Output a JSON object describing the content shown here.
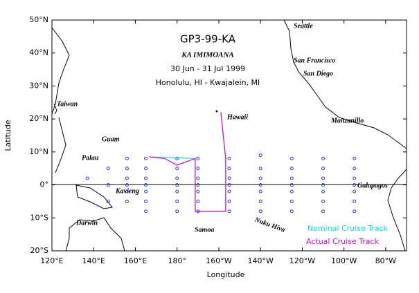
{
  "map": {
    "title": "GP3-99-KA",
    "subtitle": "KA IMIMOANA",
    "dates": "30 Jun - 31 Jul 1999",
    "route": "Honolulu, HI - Kwajalein, MI",
    "x_label": "Longitude",
    "y_label": "Latitude",
    "xlim": [
      120,
      290
    ],
    "ylim": [
      -20,
      50
    ],
    "xticks": [
      {
        "value": 120,
        "label": "120°E"
      },
      {
        "value": 140,
        "label": "140°E"
      },
      {
        "value": 160,
        "label": "160°E"
      },
      {
        "value": 180,
        "label": "180°"
      },
      {
        "value": 200,
        "label": "160°W"
      },
      {
        "value": 220,
        "label": "140°W"
      },
      {
        "value": 240,
        "label": "120°W"
      },
      {
        "value": 260,
        "label": "100°W"
      },
      {
        "value": 280,
        "label": "80°W"
      }
    ],
    "yticks": [
      {
        "value": 50,
        "label": "50°N"
      },
      {
        "value": 40,
        "label": "40°N"
      },
      {
        "value": 30,
        "label": "30°N"
      },
      {
        "value": 20,
        "label": "20°N"
      },
      {
        "value": 10,
        "label": "10°N"
      },
      {
        "value": 0,
        "label": "0°"
      },
      {
        "value": -10,
        "label": "10°S"
      },
      {
        "value": -20,
        "label": "20°S"
      }
    ],
    "places": [
      "Seattle",
      "San Francisco",
      "San Diego",
      "Manzanillo",
      "Hawaii",
      "Taiwan",
      "Guam",
      "Palau",
      "Kavieng",
      "Darwin",
      "Samoa",
      "Nuku Hiva",
      "Galapagos"
    ],
    "buoys": [
      {
        "lon": 137,
        "lats": [
          2
        ]
      },
      {
        "lon": 147,
        "lats": [
          5,
          0,
          -5
        ]
      },
      {
        "lon": 156,
        "lats": [
          8,
          5,
          2,
          0,
          -2,
          -5
        ]
      },
      {
        "lon": 165,
        "lats": [
          8,
          5,
          2,
          0,
          -2,
          -5,
          -8
        ]
      },
      {
        "lon": 180,
        "lats": [
          8,
          5,
          2,
          0,
          -2,
          -5,
          -8
        ]
      },
      {
        "lon": 190,
        "lats": [
          8,
          5,
          2,
          0,
          -2,
          -5,
          -8
        ]
      },
      {
        "lon": 205,
        "lats": [
          8,
          5,
          2,
          0,
          -2,
          -5,
          -8
        ]
      },
      {
        "lon": 220,
        "lats": [
          9,
          5,
          2,
          0,
          -2,
          -5,
          -8
        ]
      },
      {
        "lon": 235,
        "lats": [
          8,
          5,
          2,
          0,
          -2,
          -5,
          -8
        ]
      },
      {
        "lon": 250,
        "lats": [
          8,
          5,
          2,
          0,
          -2,
          -5,
          -8
        ]
      },
      {
        "lon": 265,
        "lats": [
          8,
          5,
          2,
          0,
          -2,
          -5,
          -8
        ]
      }
    ],
    "tracks": [
      {
        "name": "Nominal Cruise Track",
        "color": "#00e5e5",
        "lons": [
          166.7,
          188.7,
          188.7,
          203.3,
          203.3,
          201
        ],
        "lats": [
          8.5,
          8,
          -8,
          -8,
          8,
          21.8
        ]
      },
      {
        "name": "Actual Cruise Track",
        "color": "#e000e0",
        "lons": [
          201,
          203.3,
          203.3,
          188.7,
          188.7,
          180,
          174,
          166.7
        ],
        "lats": [
          22,
          8,
          -8,
          -8,
          8,
          6,
          8,
          8.5
        ]
      }
    ]
  }
}
